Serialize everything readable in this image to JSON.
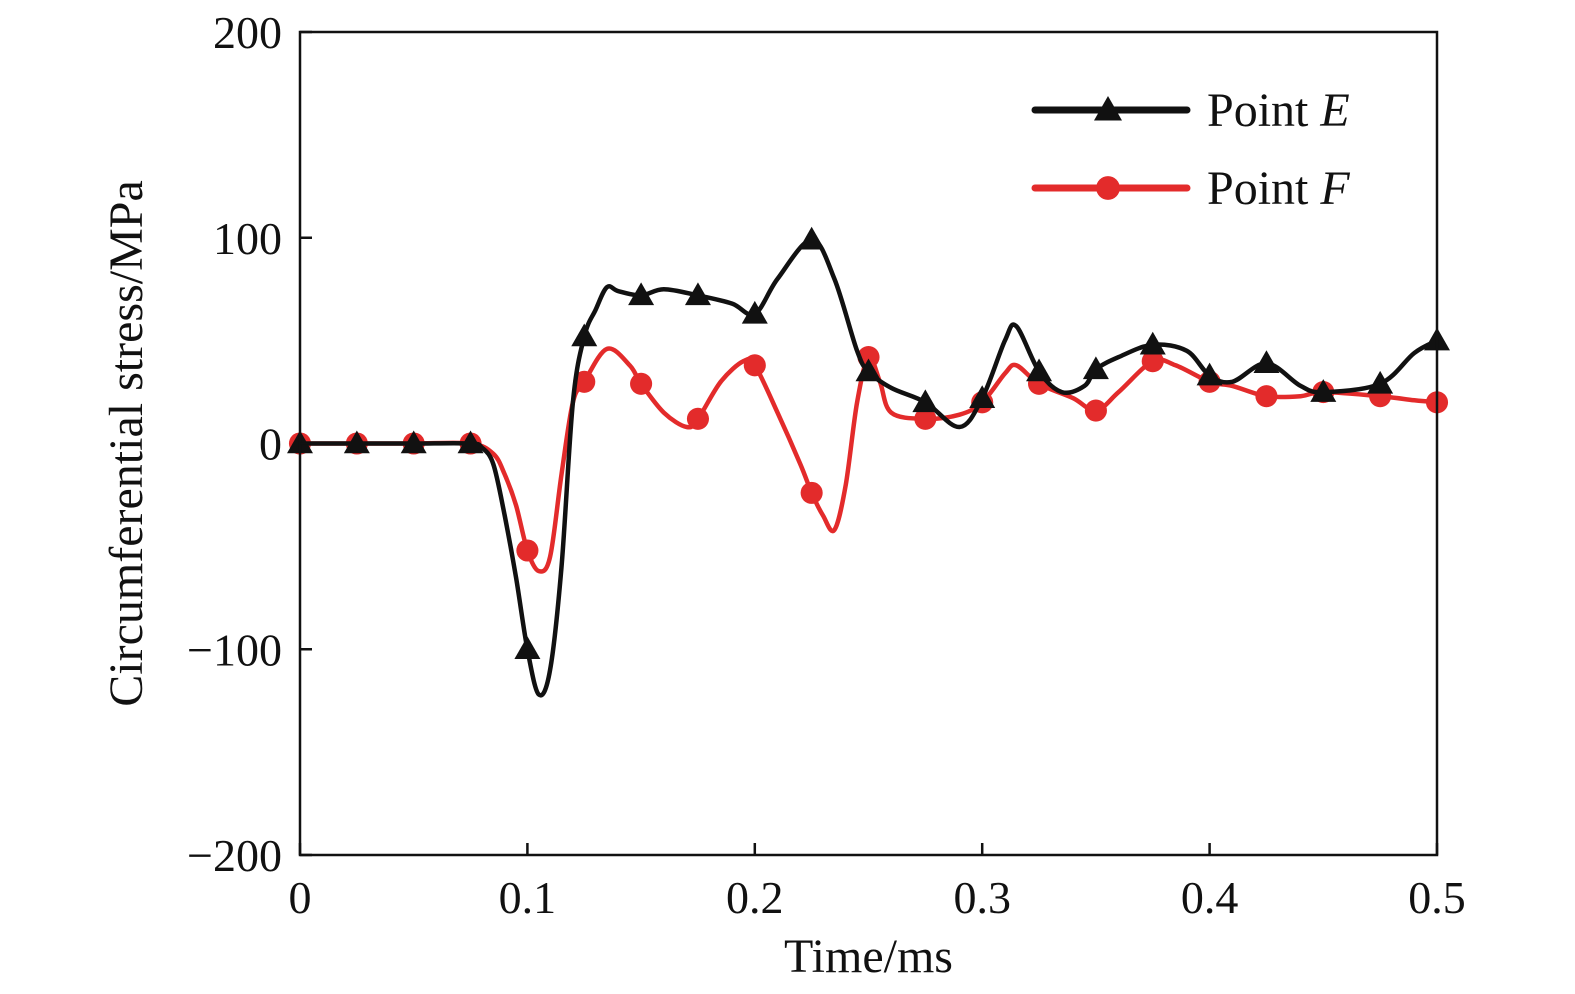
{
  "chart_data": {
    "type": "line",
    "title": "",
    "xlabel": "Time/ms",
    "ylabel": "Circumferential stress/MPa",
    "xlim": [
      0,
      0.5
    ],
    "ylim": [
      -200,
      200
    ],
    "xticks": [
      0,
      0.1,
      0.2,
      0.3,
      0.4,
      0.5
    ],
    "xtick_labels": [
      "0",
      "0.1",
      "0.2",
      "0.3",
      "0.4",
      "0.5"
    ],
    "yticks": [
      -200,
      -100,
      0,
      100,
      200
    ],
    "ytick_labels": [
      "−200",
      "−100",
      "0",
      "100",
      "200"
    ],
    "grid": false,
    "legend_position": "top-right",
    "series": [
      {
        "name": "Point E",
        "legend_prefix": "Point ",
        "legend_italic": "E",
        "color": "#111111",
        "marker": "triangle",
        "x": [
          0,
          0.025,
          0.05,
          0.075,
          0.08,
          0.085,
          0.09,
          0.095,
          0.1,
          0.105,
          0.11,
          0.115,
          0.12,
          0.125,
          0.13,
          0.135,
          0.14,
          0.15,
          0.16,
          0.175,
          0.19,
          0.2,
          0.21,
          0.225,
          0.235,
          0.245,
          0.25,
          0.26,
          0.275,
          0.29,
          0.3,
          0.31,
          0.315,
          0.325,
          0.335,
          0.345,
          0.35,
          0.36,
          0.375,
          0.39,
          0.4,
          0.41,
          0.425,
          0.44,
          0.45,
          0.475,
          0.49,
          0.5
        ],
        "y": [
          0,
          0,
          0,
          0,
          -2,
          -10,
          -35,
          -65,
          -100,
          -122,
          -110,
          -60,
          20,
          52,
          65,
          76,
          74,
          72,
          75,
          72,
          68,
          63,
          80,
          99,
          80,
          45,
          35,
          27,
          20,
          8,
          22,
          50,
          57,
          35,
          25,
          28,
          36,
          42,
          48,
          45,
          33,
          30,
          39,
          28,
          25,
          29,
          44,
          50
        ],
        "marker_x": [
          0,
          0.025,
          0.05,
          0.075,
          0.1,
          0.125,
          0.15,
          0.175,
          0.2,
          0.225,
          0.25,
          0.275,
          0.3,
          0.325,
          0.35,
          0.375,
          0.4,
          0.425,
          0.45,
          0.475,
          0.5
        ]
      },
      {
        "name": "Point F",
        "legend_prefix": "Point ",
        "legend_italic": "F",
        "color": "#e32b2b",
        "marker": "circle",
        "x": [
          0,
          0.025,
          0.05,
          0.075,
          0.085,
          0.09,
          0.095,
          0.1,
          0.105,
          0.11,
          0.115,
          0.12,
          0.125,
          0.135,
          0.145,
          0.15,
          0.16,
          0.17,
          0.175,
          0.185,
          0.195,
          0.2,
          0.21,
          0.22,
          0.225,
          0.23,
          0.235,
          0.24,
          0.245,
          0.25,
          0.255,
          0.26,
          0.275,
          0.29,
          0.3,
          0.31,
          0.315,
          0.325,
          0.34,
          0.35,
          0.36,
          0.375,
          0.385,
          0.4,
          0.41,
          0.425,
          0.44,
          0.45,
          0.475,
          0.49,
          0.5
        ],
        "y": [
          0,
          0,
          0,
          0,
          -5,
          -15,
          -30,
          -52,
          -62,
          -55,
          -15,
          20,
          30,
          46,
          38,
          29,
          15,
          8,
          12,
          30,
          40,
          38,
          15,
          -10,
          -24,
          -35,
          -42,
          -20,
          20,
          42,
          30,
          15,
          12,
          14,
          20,
          34,
          38,
          29,
          22,
          16,
          25,
          40,
          38,
          30,
          28,
          23,
          23,
          25,
          23,
          21,
          20
        ],
        "marker_x": [
          0,
          0.025,
          0.05,
          0.075,
          0.1,
          0.125,
          0.15,
          0.175,
          0.2,
          0.225,
          0.25,
          0.275,
          0.3,
          0.325,
          0.35,
          0.375,
          0.4,
          0.425,
          0.45,
          0.475,
          0.5
        ]
      }
    ]
  }
}
